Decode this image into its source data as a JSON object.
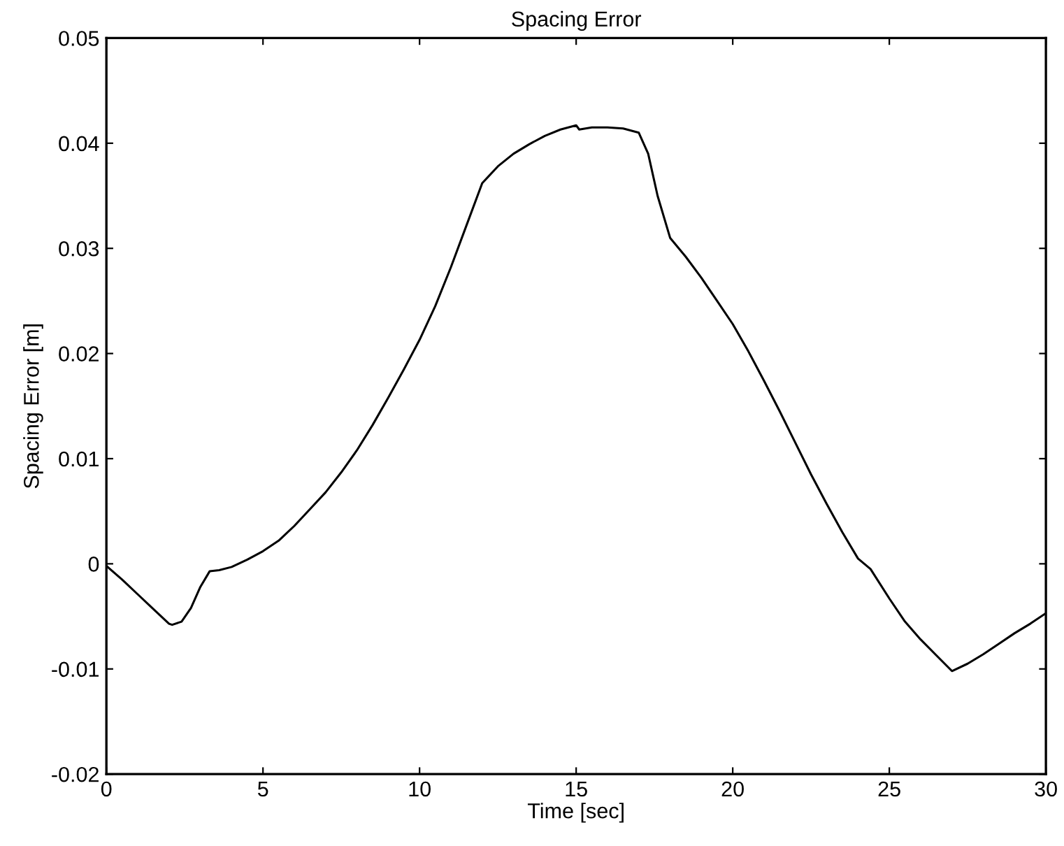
{
  "chart_data": {
    "type": "line",
    "title": "Spacing Error",
    "xlabel": "Time [sec]",
    "ylabel": "Spacing Error [m]",
    "xlim": [
      0,
      30
    ],
    "ylim": [
      -0.02,
      0.05
    ],
    "xticks": [
      0,
      5,
      10,
      15,
      20,
      25,
      30
    ],
    "yticks": [
      -0.02,
      -0.01,
      0,
      0.01,
      0.02,
      0.03,
      0.04,
      0.05
    ],
    "grid": false,
    "legend": false,
    "marker": "none",
    "line_style": "solid",
    "series": [
      {
        "color": "#000000",
        "x": [
          0,
          0.5,
          1,
          1.5,
          2,
          2.1,
          2.4,
          2.7,
          3,
          3.3,
          3.6,
          4,
          4.5,
          5,
          5.5,
          6,
          6.5,
          7,
          7.5,
          8,
          8.5,
          9,
          9.5,
          10,
          10.5,
          11,
          11.5,
          12,
          12.5,
          13,
          13.5,
          14,
          14.5,
          15,
          15.1,
          15.5,
          16,
          16.5,
          17,
          17.3,
          17.6,
          18,
          18.5,
          19,
          19.5,
          20,
          20.5,
          21,
          21.5,
          22,
          22.5,
          23,
          23.5,
          24,
          24.4,
          25,
          25.5,
          26,
          26.5,
          27,
          27.5,
          28,
          28.5,
          29,
          29.5,
          30
        ],
        "values": [
          -0.0002,
          -0.0015,
          -0.0029,
          -0.0043,
          -0.0057,
          -0.0058,
          -0.0055,
          -0.0042,
          -0.0022,
          -0.0007,
          -0.0006,
          -0.0003,
          0.0004,
          0.0012,
          0.0022,
          0.0036,
          0.0052,
          0.0068,
          0.0087,
          0.0108,
          0.0132,
          0.0158,
          0.0185,
          0.0213,
          0.0245,
          0.0282,
          0.0322,
          0.0362,
          0.0378,
          0.039,
          0.0399,
          0.0407,
          0.0413,
          0.0417,
          0.0413,
          0.0415,
          0.0415,
          0.0414,
          0.041,
          0.039,
          0.035,
          0.031,
          0.0292,
          0.0272,
          0.025,
          0.0228,
          0.0202,
          0.0174,
          0.0145,
          0.0115,
          0.0085,
          0.0057,
          0.003,
          0.0005,
          -0.0005,
          -0.0033,
          -0.0055,
          -0.0072,
          -0.0087,
          -0.0102,
          -0.0095,
          -0.0086,
          -0.0076,
          -0.0066,
          -0.0057,
          -0.0047
        ]
      }
    ]
  }
}
